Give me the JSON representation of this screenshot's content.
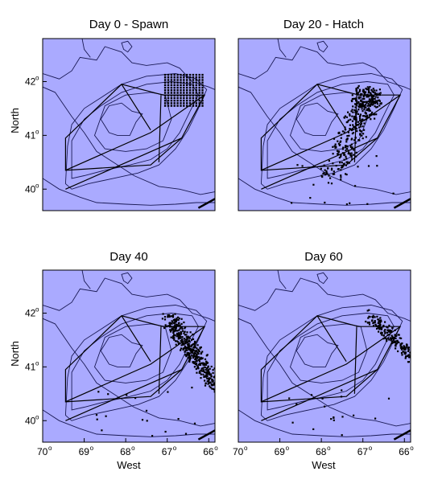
{
  "panels": [
    {
      "title": "Day 0 - Spawn",
      "stage": "spawn"
    },
    {
      "title": "Day 20 - Hatch",
      "stage": "hatch"
    },
    {
      "title": "Day 40",
      "stage": "d40"
    },
    {
      "title": "Day 60",
      "stage": "d60"
    }
  ],
  "axes": {
    "ylabel": "North",
    "xlabel": "West",
    "lat_ticks": [
      "42",
      "41",
      "40"
    ],
    "lon_ticks": [
      "70",
      "69",
      "68",
      "67",
      "66"
    ],
    "degree_symbol": "o",
    "lon_range": [
      70.0,
      65.85
    ],
    "lat_range": [
      39.6,
      42.8
    ]
  },
  "colors": {
    "ocean": "#aaaaff",
    "contour": "#1a1a55",
    "particle": "#000000",
    "border": "#000000"
  }
}
